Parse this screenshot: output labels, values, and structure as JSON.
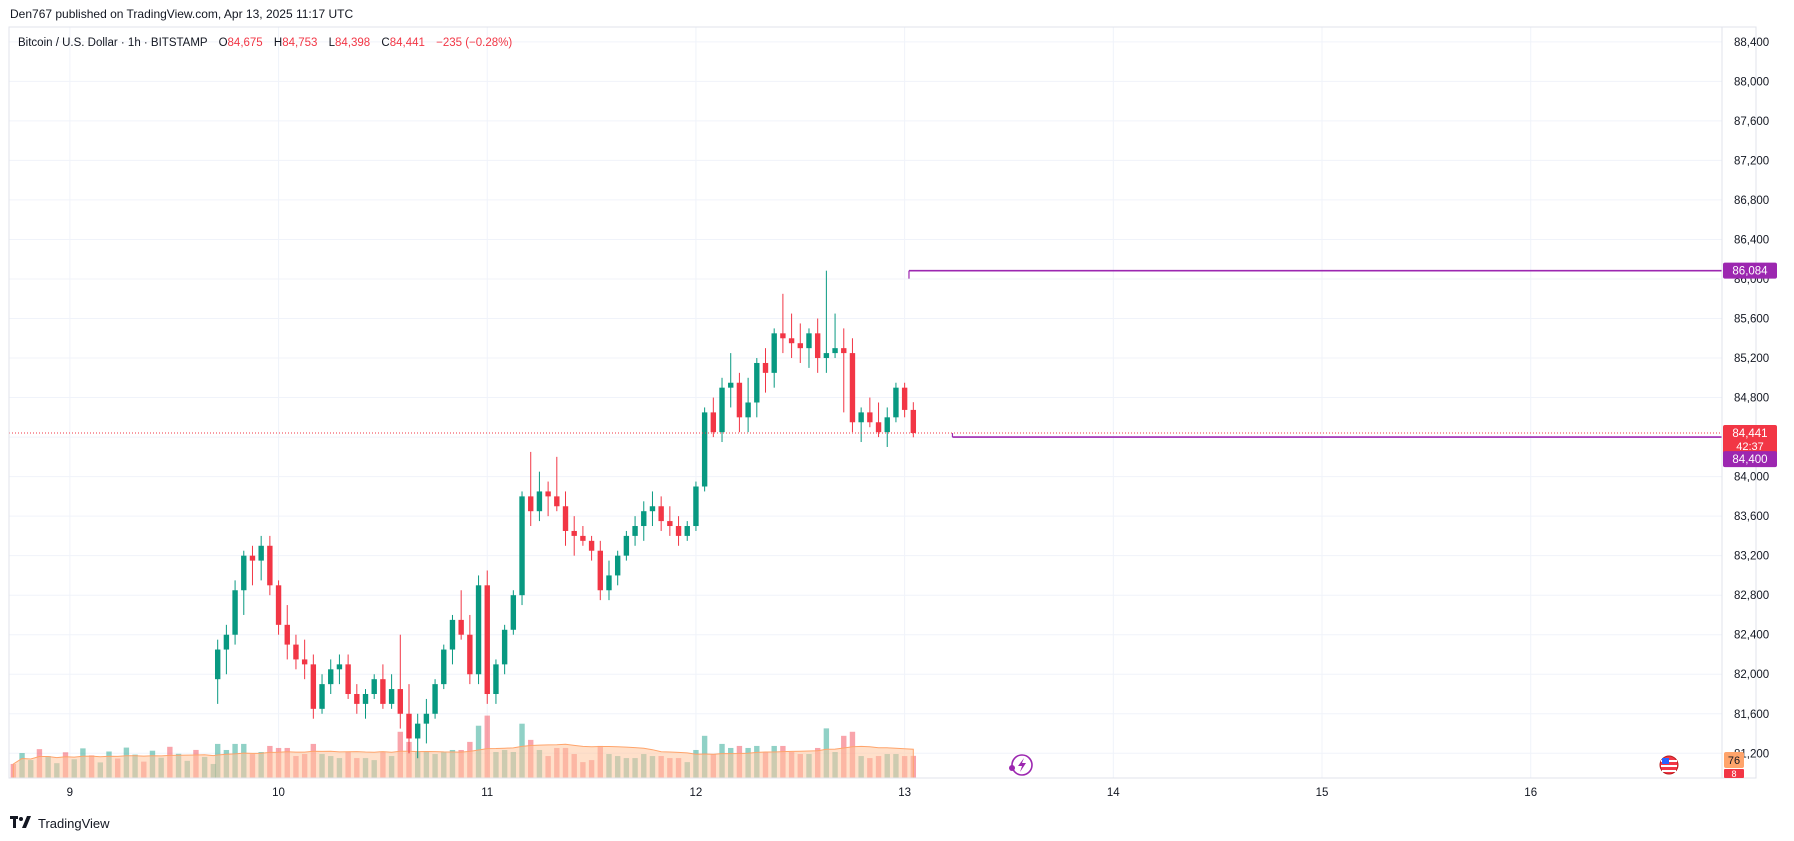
{
  "header": {
    "published_text": "Den767 published on TradingView.com, Apr 13, 2025 11:17 UTC"
  },
  "legend": {
    "symbol": "Bitcoin / U.S. Dollar · 1h · BITSTAMP",
    "open_label": "O",
    "open": "84,675",
    "high_label": "H",
    "high": "84,753",
    "low_label": "L",
    "low": "84,398",
    "close_label": "C",
    "close": "84,441",
    "change": "−235 (−0.28%)"
  },
  "colors": {
    "up": "#089981",
    "down": "#f23645",
    "level": "#9c27b0",
    "ma": "#ffc79f",
    "grid": "#f0f3fa",
    "axis_text": "#131722"
  },
  "badges": {
    "resistance": "86,084",
    "last_price": "84,441",
    "countdown": "42:37",
    "support": "84,400",
    "volume_top": "76",
    "volume_bottom": "8"
  },
  "footer": {
    "brand": "TradingView",
    "logo_icon": "tv-logo-icon"
  },
  "chart_data": {
    "type": "candlestick",
    "interval": "1h",
    "y_ticks": [
      81200,
      81600,
      82000,
      82400,
      82800,
      83200,
      83600,
      84000,
      84400,
      84800,
      85200,
      85600,
      86000,
      86400,
      86800,
      87200,
      87600,
      88000,
      88400
    ],
    "y_tick_labels": [
      "81,200",
      "81,600",
      "82,000",
      "82,400",
      "82,800",
      "83,200",
      "83,600",
      "84,000",
      "84,400",
      "84,800",
      "85,200",
      "85,600",
      "86,000",
      "86,400",
      "86,800",
      "87,200",
      "87,600",
      "88,000",
      "88,400"
    ],
    "ylim": [
      80950,
      88550
    ],
    "x_ticks": [
      {
        "label": "9",
        "t": 0
      },
      {
        "label": "10",
        "t": 24
      },
      {
        "label": "11",
        "t": 48
      },
      {
        "label": "12",
        "t": 72
      },
      {
        "label": "13",
        "t": 96
      },
      {
        "label": "14",
        "t": 120
      },
      {
        "label": "15",
        "t": 144
      },
      {
        "label": "16",
        "t": 168
      }
    ],
    "xlim": [
      -7,
      190
    ],
    "levels": [
      {
        "value": 86084,
        "from_t": 96.5
      },
      {
        "value": 84400,
        "from_t": 101.5
      }
    ],
    "last_price": 84441,
    "candles_start_t": 17,
    "candles": [
      [
        81950,
        82350,
        81700,
        82250
      ],
      [
        82250,
        82500,
        82000,
        82400
      ],
      [
        82400,
        82950,
        82300,
        82850
      ],
      [
        82850,
        83250,
        82600,
        83200
      ],
      [
        83200,
        83300,
        82900,
        83150
      ],
      [
        83150,
        83400,
        82950,
        83300
      ],
      [
        83300,
        83400,
        82800,
        82900
      ],
      [
        82900,
        82950,
        82400,
        82500
      ],
      [
        82500,
        82700,
        82150,
        82300
      ],
      [
        82300,
        82400,
        82050,
        82150
      ],
      [
        82150,
        82350,
        81950,
        82100
      ],
      [
        82100,
        82200,
        81550,
        81650
      ],
      [
        81650,
        82000,
        81600,
        81900
      ],
      [
        81900,
        82150,
        81800,
        82050
      ],
      [
        82050,
        82200,
        81900,
        82100
      ],
      [
        82100,
        82200,
        81750,
        81800
      ],
      [
        81800,
        81900,
        81600,
        81700
      ],
      [
        81700,
        81850,
        81550,
        81800
      ],
      [
        81800,
        82000,
        81750,
        81950
      ],
      [
        81950,
        82100,
        81650,
        81700
      ],
      [
        81700,
        82000,
        81650,
        81850
      ],
      [
        81850,
        82400,
        81450,
        81600
      ],
      [
        81600,
        81900,
        81200,
        81350
      ],
      [
        81350,
        81600,
        81150,
        81500
      ],
      [
        81500,
        81750,
        81300,
        81600
      ],
      [
        81600,
        81950,
        81550,
        81900
      ],
      [
        81900,
        82300,
        81850,
        82250
      ],
      [
        82250,
        82600,
        82100,
        82550
      ],
      [
        82550,
        82850,
        82350,
        82400
      ],
      [
        82400,
        82600,
        81900,
        82000
      ],
      [
        82000,
        83000,
        81900,
        82900
      ],
      [
        82900,
        83050,
        81700,
        81800
      ],
      [
        81800,
        82150,
        81700,
        82100
      ],
      [
        82100,
        82500,
        82000,
        82450
      ],
      [
        82450,
        82850,
        82400,
        82800
      ],
      [
        82800,
        83850,
        82700,
        83800
      ],
      [
        83800,
        84250,
        83500,
        83650
      ],
      [
        83650,
        84050,
        83550,
        83850
      ],
      [
        83850,
        83950,
        83600,
        83800
      ],
      [
        83800,
        84200,
        83650,
        83700
      ],
      [
        83700,
        83850,
        83300,
        83450
      ],
      [
        83450,
        83600,
        83200,
        83400
      ],
      [
        83400,
        83500,
        83300,
        83350
      ],
      [
        83350,
        83400,
        83150,
        83250
      ],
      [
        83250,
        83350,
        82750,
        82850
      ],
      [
        82850,
        83150,
        82750,
        83000
      ],
      [
        83000,
        83250,
        82900,
        83200
      ],
      [
        83200,
        83450,
        83150,
        83400
      ],
      [
        83400,
        83600,
        83300,
        83500
      ],
      [
        83500,
        83750,
        83350,
        83650
      ],
      [
        83650,
        83850,
        83500,
        83700
      ],
      [
        83700,
        83800,
        83450,
        83550
      ],
      [
        83550,
        83700,
        83400,
        83500
      ],
      [
        83500,
        83600,
        83300,
        83400
      ],
      [
        83400,
        83550,
        83350,
        83500
      ],
      [
        83500,
        83950,
        83450,
        83900
      ],
      [
        83900,
        84700,
        83850,
        84650
      ],
      [
        84650,
        84800,
        84400,
        84450
      ],
      [
        84450,
        85000,
        84350,
        84900
      ],
      [
        84900,
        85250,
        84700,
        84950
      ],
      [
        84950,
        85050,
        84450,
        84600
      ],
      [
        84600,
        85000,
        84450,
        84750
      ],
      [
        84750,
        85200,
        84600,
        85150
      ],
      [
        85150,
        85300,
        84850,
        85050
      ],
      [
        85050,
        85500,
        84900,
        85450
      ],
      [
        85450,
        85850,
        85250,
        85400
      ],
      [
        85400,
        85650,
        85200,
        85350
      ],
      [
        85350,
        85550,
        85150,
        85300
      ],
      [
        85300,
        85500,
        85100,
        85450
      ],
      [
        85450,
        85600,
        85050,
        85200
      ],
      [
        85200,
        86084,
        85050,
        85250
      ],
      [
        85250,
        85650,
        85200,
        85300
      ],
      [
        85300,
        85500,
        84650,
        85250
      ],
      [
        85250,
        85400,
        84450,
        84550
      ],
      [
        84550,
        84700,
        84350,
        84650
      ],
      [
        84650,
        84800,
        84500,
        84550
      ],
      [
        84550,
        84750,
        84400,
        84450
      ],
      [
        84450,
        84700,
        84300,
        84600
      ],
      [
        84600,
        84950,
        84550,
        84900
      ],
      [
        84900,
        84950,
        84600,
        84675
      ],
      [
        84675,
        84753,
        84398,
        84441
      ]
    ],
    "volume_axis_max": 100
  }
}
